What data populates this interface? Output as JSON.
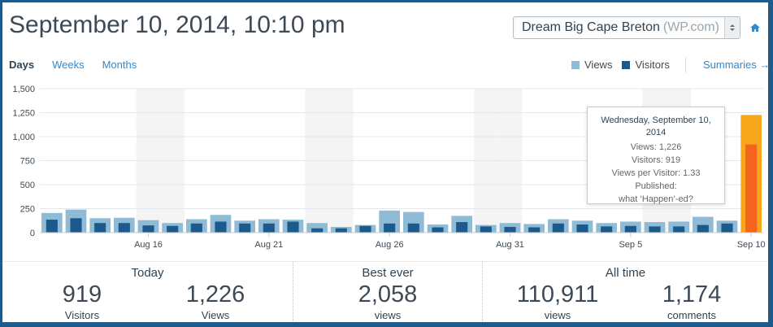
{
  "header": {
    "title": "September 10, 2014, 10:10 pm",
    "site_name": "Dream Big Cape Breton",
    "site_host": "(WP.com)"
  },
  "tabs": [
    "Days",
    "Weeks",
    "Months"
  ],
  "active_tab": "Days",
  "legend": {
    "views_label": "Views",
    "visitors_label": "Visitors",
    "summaries_link": "Summaries →"
  },
  "colors": {
    "views": "#8fbbd6",
    "visitors": "#1b5a8a",
    "highlight_views": "#f8a71d",
    "highlight_visitors": "#f4641c",
    "weekend_band": "#f4f4f4",
    "link": "#2e8ad0"
  },
  "icons": [
    "home-icon",
    "chevron-down-icon"
  ],
  "chart_data": {
    "type": "bar",
    "categories": [
      "Aug 12",
      "Aug 13",
      "Aug 14",
      "Aug 15",
      "Aug 16",
      "Aug 17",
      "Aug 18",
      "Aug 19",
      "Aug 20",
      "Aug 21",
      "Aug 22",
      "Aug 23",
      "Aug 24",
      "Aug 25",
      "Aug 26",
      "Aug 27",
      "Aug 28",
      "Aug 29",
      "Aug 30",
      "Aug 31",
      "Sep 1",
      "Sep 2",
      "Sep 3",
      "Sep 4",
      "Sep 5",
      "Sep 6",
      "Sep 7",
      "Sep 8",
      "Sep 9",
      "Sep 10"
    ],
    "x_tick_labels": [
      "Aug 16",
      "Aug 21",
      "Aug 26",
      "Aug 31",
      "Sep 5",
      "Sep 10"
    ],
    "series": [
      {
        "name": "Views",
        "values": [
          205,
          240,
          150,
          155,
          130,
          100,
          140,
          185,
          125,
          140,
          135,
          100,
          60,
          80,
          230,
          215,
          85,
          175,
          80,
          100,
          90,
          140,
          125,
          100,
          115,
          110,
          115,
          165,
          125,
          1226
        ]
      },
      {
        "name": "Visitors",
        "values": [
          135,
          150,
          100,
          100,
          75,
          70,
          95,
          115,
          95,
          95,
          115,
          45,
          45,
          70,
          95,
          95,
          55,
          110,
          65,
          60,
          55,
          95,
          85,
          65,
          70,
          65,
          65,
          80,
          95,
          919
        ]
      }
    ],
    "yticks": [
      0,
      250,
      500,
      750,
      "1,000",
      "1,250",
      "1,500"
    ],
    "ylim": [
      0,
      1500
    ],
    "weekend_band_indices": [
      4,
      5,
      11,
      12,
      18,
      19,
      25,
      26
    ],
    "highlighted": "Sep 10",
    "grid": true
  },
  "tooltip": {
    "date": "Wednesday, September 10, 2014",
    "views": "Views: 1,226",
    "visitors": "Visitors: 919",
    "views_per_visitor": "Views per Visitor: 1.33",
    "published": "Published:",
    "post": "what ‘Happen’-ed?"
  },
  "stats": {
    "today": {
      "heading": "Today",
      "visitors_value": "919",
      "visitors_label": "Visitors",
      "views_value": "1,226",
      "views_label": "Views"
    },
    "best_ever": {
      "heading": "Best ever",
      "value": "2,058",
      "label": "views"
    },
    "all_time": {
      "heading": "All time",
      "views_value": "110,911",
      "views_label": "views",
      "comments_value": "1,174",
      "comments_label": "comments"
    }
  }
}
